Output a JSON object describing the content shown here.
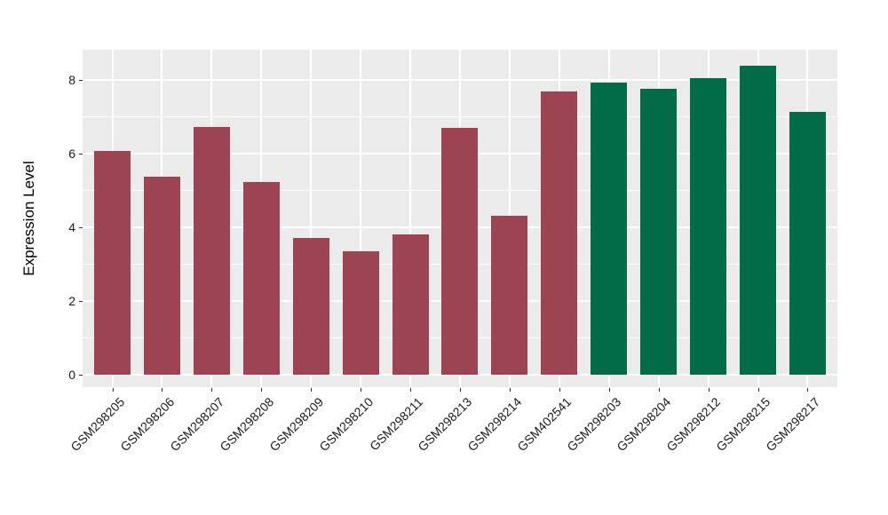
{
  "chart_data": {
    "type": "bar",
    "title": "",
    "ylabel": "Expression Level",
    "xlabel": "",
    "categories": [
      "GSM298205",
      "GSM298206",
      "GSM298207",
      "GSM298208",
      "GSM298209",
      "GSM298210",
      "GSM298211",
      "GSM298213",
      "GSM298214",
      "GSM402541",
      "GSM298203",
      "GSM298204",
      "GSM298212",
      "GSM298215",
      "GSM298217"
    ],
    "values": [
      6.07,
      5.38,
      6.72,
      5.24,
      3.72,
      3.36,
      3.8,
      6.7,
      4.31,
      7.69,
      7.92,
      7.76,
      8.04,
      8.38,
      7.13
    ],
    "bar_colors": [
      "#9C4452",
      "#9C4452",
      "#9C4452",
      "#9C4452",
      "#9C4452",
      "#9C4452",
      "#9C4452",
      "#9C4452",
      "#9C4452",
      "#9C4452",
      "#026B48",
      "#026B48",
      "#026B48",
      "#026B48",
      "#026B48"
    ],
    "group_colors": {
      "group_red": "#9C4452",
      "group_green": "#026B48"
    },
    "yticks": [
      0,
      2,
      4,
      6,
      8
    ],
    "yticks_minor": [
      1,
      3,
      5,
      7
    ],
    "ylim": [
      0,
      8.8
    ],
    "x_tick_angle": 45,
    "grid": "white major+minor horizontal, white major vertical on gray panel",
    "legend": "none",
    "panel_background": "#EBEBEB",
    "grid_color": "#FFFFFF",
    "axis_text_color": "#1A1A1A"
  }
}
